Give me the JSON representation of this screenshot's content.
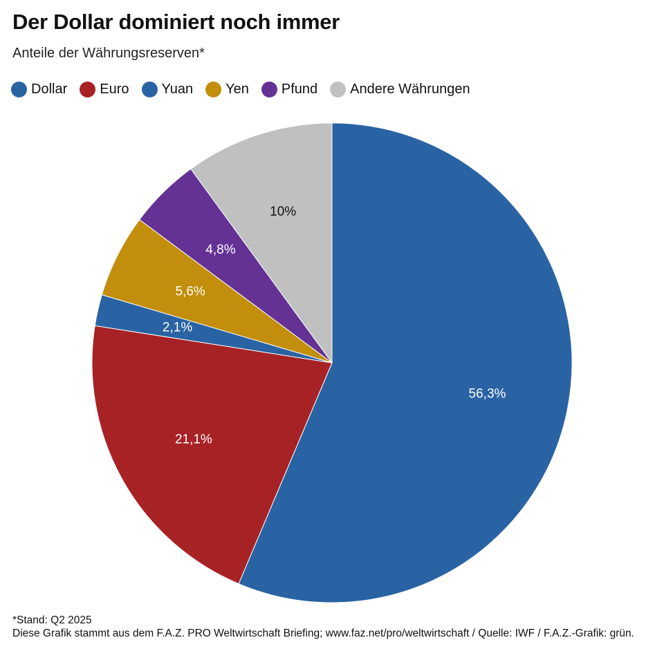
{
  "header": {
    "title": "Der Dollar dominiert noch immer",
    "subtitle": "Anteile der Währungsreserven*"
  },
  "chart_data": {
    "type": "pie",
    "title": "Der Dollar dominiert noch immer",
    "subtitle": "Anteile der Währungsreserven*",
    "unit": "%",
    "categories": [
      "Dollar",
      "Euro",
      "Yuan",
      "Yen",
      "Pfund",
      "Andere Währungen"
    ],
    "values": [
      56.3,
      21.1,
      2.1,
      5.6,
      4.8,
      10
    ],
    "labels": [
      "56,3%",
      "21,1%",
      "2,1%",
      "5,6%",
      "4,8%",
      "10%"
    ],
    "colors": [
      "#2963a3",
      "#a72225",
      "#2963a3",
      "#c28e0b",
      "#643295",
      "#c0c0c0"
    ],
    "label_colors": [
      "#ffffff",
      "#ffffff",
      "#ffffff",
      "#ffffff",
      "#ffffff",
      "#111111"
    ],
    "start": "12 o'clock",
    "direction": "clockwise",
    "legend_position": "top-left"
  },
  "footer": {
    "note": "*Stand: Q2 2025",
    "source": "Diese Grafik stammt aus dem F.A.Z. PRO Weltwirtschaft Briefing; www.faz.net/pro/weltwirtschaft / Quelle: IWF / F.A.Z.-Grafik: grün."
  }
}
